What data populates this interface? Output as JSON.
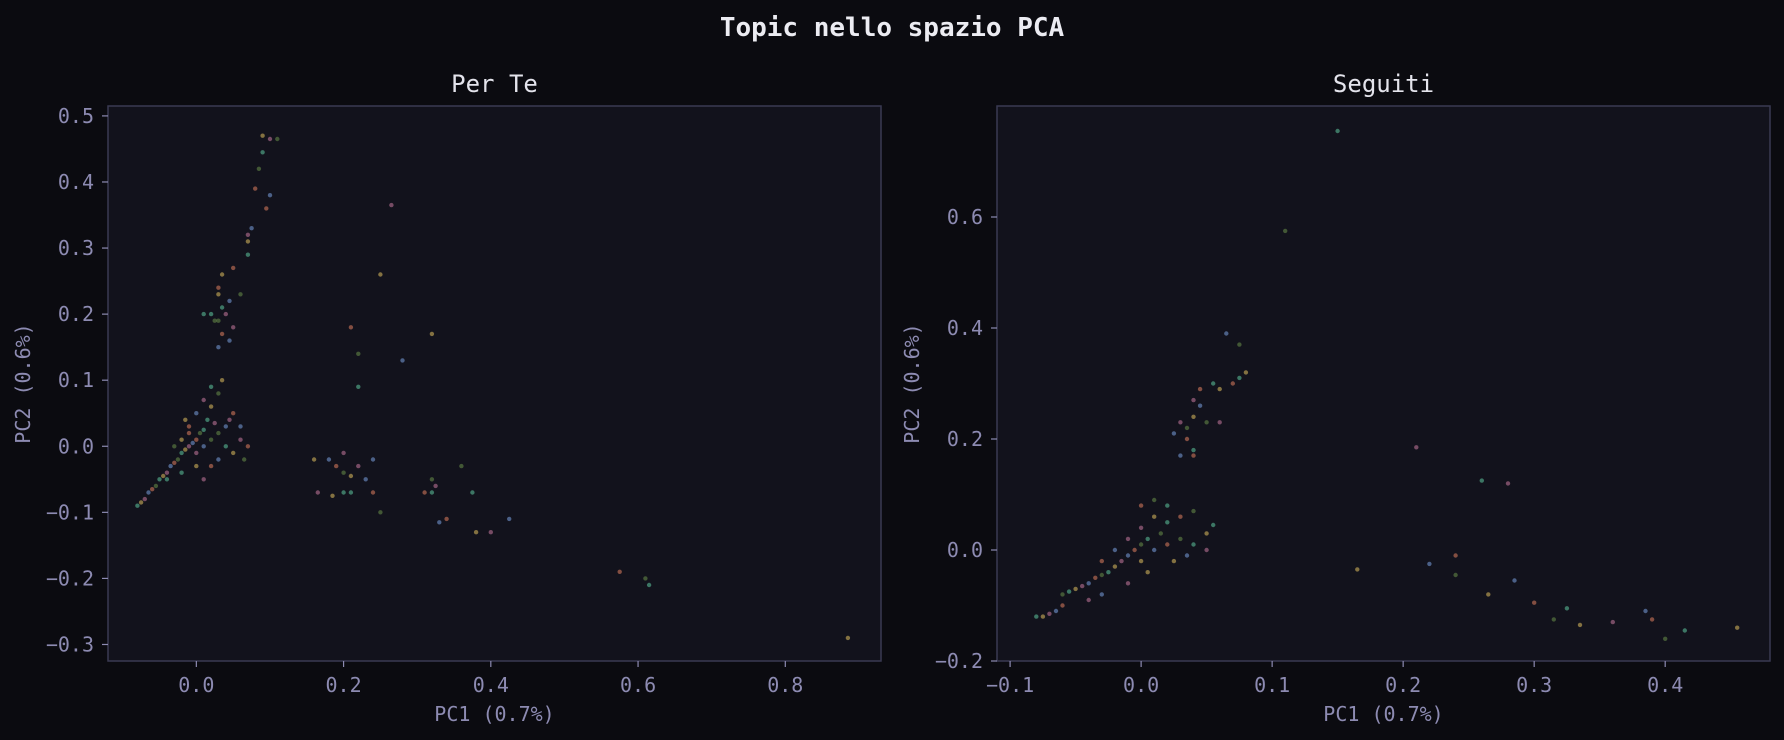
{
  "suptitle": "Topic nello spazio PCA",
  "colors": {
    "background": "#0b0b10",
    "axes_bg": "#12121c",
    "spine": "#3a3a52",
    "text": "#e4e4ec",
    "tick": "#8d8bb2"
  },
  "chart_data": [
    {
      "type": "scatter",
      "title": "Per Te",
      "xlabel": "PC1 (0.7%)",
      "ylabel": "PC2 (0.6%)",
      "xlim": [
        -0.12,
        0.93
      ],
      "ylim": [
        -0.325,
        0.515
      ],
      "xticks": [
        0.0,
        0.2,
        0.4,
        0.6,
        0.8
      ],
      "xtick_labels": [
        "0.0",
        "0.2",
        "0.4",
        "0.6",
        "0.8"
      ],
      "yticks": [
        0.5,
        0.4,
        0.3,
        0.2,
        0.1,
        0.0,
        -0.1,
        -0.2,
        -0.3
      ],
      "ytick_labels": [
        "0.5",
        "0.4",
        "0.3",
        "0.2",
        "0.1",
        "0.0",
        "−0.1",
        "−0.2",
        "−0.3"
      ],
      "grid": false,
      "point_colors": [
        "#5ec8a0",
        "#e0c060",
        "#c87aa0",
        "#7aa0e0",
        "#e08060",
        "#6a8f4a"
      ],
      "points": [
        [
          -0.08,
          -0.09
        ],
        [
          -0.075,
          -0.085
        ],
        [
          -0.07,
          -0.08
        ],
        [
          -0.065,
          -0.07
        ],
        [
          -0.06,
          -0.065
        ],
        [
          -0.055,
          -0.06
        ],
        [
          -0.05,
          -0.05
        ],
        [
          -0.045,
          -0.045
        ],
        [
          -0.04,
          -0.04
        ],
        [
          -0.035,
          -0.03
        ],
        [
          -0.03,
          -0.025
        ],
        [
          -0.025,
          -0.02
        ],
        [
          -0.02,
          -0.01
        ],
        [
          -0.015,
          -0.005
        ],
        [
          -0.01,
          0.0
        ],
        [
          -0.005,
          0.005
        ],
        [
          0.0,
          0.01
        ],
        [
          0.005,
          0.02
        ],
        [
          0.01,
          0.025
        ],
        [
          -0.02,
          0.01
        ],
        [
          0.0,
          -0.01
        ],
        [
          0.01,
          0.0
        ],
        [
          -0.01,
          0.02
        ],
        [
          0.02,
          0.01
        ],
        [
          0.015,
          0.04
        ],
        [
          0.02,
          0.06
        ],
        [
          0.01,
          0.07
        ],
        [
          0.0,
          0.05
        ],
        [
          -0.01,
          0.03
        ],
        [
          0.03,
          0.02
        ],
        [
          0.04,
          0.0
        ],
        [
          0.05,
          -0.01
        ],
        [
          0.06,
          0.01
        ],
        [
          0.03,
          -0.02
        ],
        [
          0.02,
          -0.03
        ],
        [
          -0.03,
          0.0
        ],
        [
          -0.02,
          -0.04
        ],
        [
          0.0,
          -0.03
        ],
        [
          0.01,
          -0.05
        ],
        [
          0.04,
          0.03
        ],
        [
          0.05,
          0.05
        ],
        [
          0.03,
          0.08
        ],
        [
          0.02,
          0.09
        ],
        [
          0.035,
          0.1
        ],
        [
          0.045,
          0.04
        ],
        [
          0.06,
          0.03
        ],
        [
          0.07,
          0.0
        ],
        [
          0.065,
          -0.02
        ],
        [
          -0.04,
          -0.05
        ],
        [
          -0.015,
          0.04
        ],
        [
          0.025,
          0.035
        ],
        [
          0.03,
          0.15
        ],
        [
          0.035,
          0.17
        ],
        [
          0.03,
          0.19
        ],
        [
          0.035,
          0.21
        ],
        [
          0.03,
          0.23
        ],
        [
          0.04,
          0.2
        ],
        [
          0.045,
          0.22
        ],
        [
          0.03,
          0.24
        ],
        [
          0.025,
          0.19
        ],
        [
          0.02,
          0.2
        ],
        [
          0.035,
          0.26
        ],
        [
          0.05,
          0.18
        ],
        [
          0.045,
          0.16
        ],
        [
          0.05,
          0.27
        ],
        [
          0.06,
          0.23
        ],
        [
          0.07,
          0.29
        ],
        [
          0.07,
          0.31
        ],
        [
          0.07,
          0.32
        ],
        [
          0.075,
          0.33
        ],
        [
          0.08,
          0.39
        ],
        [
          0.085,
          0.42
        ],
        [
          0.09,
          0.445
        ],
        [
          0.09,
          0.47
        ],
        [
          0.1,
          0.465
        ],
        [
          0.1,
          0.38
        ],
        [
          0.095,
          0.36
        ],
        [
          0.11,
          0.465
        ],
        [
          0.01,
          0.2
        ],
        [
          0.16,
          -0.02
        ],
        [
          0.165,
          -0.07
        ],
        [
          0.18,
          -0.02
        ],
        [
          0.19,
          -0.03
        ],
        [
          0.2,
          -0.04
        ],
        [
          0.2,
          -0.07
        ],
        [
          0.21,
          -0.045
        ],
        [
          0.22,
          -0.03
        ],
        [
          0.23,
          -0.05
        ],
        [
          0.24,
          -0.07
        ],
        [
          0.25,
          -0.1
        ],
        [
          0.21,
          -0.07
        ],
        [
          0.185,
          -0.075
        ],
        [
          0.2,
          -0.01
        ],
        [
          0.24,
          -0.02
        ],
        [
          0.21,
          0.18
        ],
        [
          0.22,
          0.14
        ],
        [
          0.22,
          0.09
        ],
        [
          0.25,
          0.26
        ],
        [
          0.265,
          0.365
        ],
        [
          0.28,
          0.13
        ],
        [
          0.31,
          -0.07
        ],
        [
          0.32,
          -0.05
        ],
        [
          0.32,
          -0.07
        ],
        [
          0.32,
          0.17
        ],
        [
          0.325,
          -0.06
        ],
        [
          0.33,
          -0.115
        ],
        [
          0.34,
          -0.11
        ],
        [
          0.36,
          -0.03
        ],
        [
          0.375,
          -0.07
        ],
        [
          0.38,
          -0.13
        ],
        [
          0.4,
          -0.13
        ],
        [
          0.425,
          -0.11
        ],
        [
          0.575,
          -0.19
        ],
        [
          0.61,
          -0.2
        ],
        [
          0.615,
          -0.21
        ],
        [
          0.885,
          -0.29
        ]
      ]
    },
    {
      "type": "scatter",
      "title": "Seguiti",
      "xlabel": "PC1 (0.7%)",
      "ylabel": "PC2 (0.6%)",
      "xlim": [
        -0.11,
        0.48
      ],
      "ylim": [
        -0.2,
        0.8
      ],
      "xticks": [
        -0.1,
        0.0,
        0.1,
        0.2,
        0.3,
        0.4
      ],
      "xtick_labels": [
        "−0.1",
        "0.0",
        "0.1",
        "0.2",
        "0.3",
        "0.4"
      ],
      "yticks": [
        0.6,
        0.4,
        0.2,
        0.0,
        -0.2
      ],
      "ytick_labels": [
        "0.6",
        "0.4",
        "0.2",
        "0.0",
        "−0.2"
      ],
      "grid": false,
      "point_colors": [
        "#5ec8a0",
        "#e0c060",
        "#c87aa0",
        "#7aa0e0",
        "#e08060",
        "#6a8f4a"
      ],
      "points": [
        [
          -0.08,
          -0.12
        ],
        [
          -0.075,
          -0.12
        ],
        [
          -0.07,
          -0.115
        ],
        [
          -0.065,
          -0.11
        ],
        [
          -0.06,
          -0.1
        ],
        [
          -0.06,
          -0.08
        ],
        [
          -0.055,
          -0.075
        ],
        [
          -0.05,
          -0.07
        ],
        [
          -0.045,
          -0.065
        ],
        [
          -0.04,
          -0.06
        ],
        [
          -0.035,
          -0.05
        ],
        [
          -0.03,
          -0.045
        ],
        [
          -0.025,
          -0.04
        ],
        [
          -0.02,
          -0.03
        ],
        [
          -0.015,
          -0.02
        ],
        [
          -0.01,
          -0.01
        ],
        [
          -0.005,
          0.0
        ],
        [
          0.0,
          0.01
        ],
        [
          0.005,
          0.02
        ],
        [
          0.0,
          -0.02
        ],
        [
          -0.01,
          0.02
        ],
        [
          0.01,
          0.0
        ],
        [
          0.02,
          0.01
        ],
        [
          0.015,
          0.03
        ],
        [
          0.02,
          0.05
        ],
        [
          0.01,
          0.06
        ],
        [
          0.0,
          0.04
        ],
        [
          -0.02,
          0.0
        ],
        [
          -0.03,
          -0.02
        ],
        [
          0.03,
          0.02
        ],
        [
          0.04,
          0.01
        ],
        [
          0.05,
          0.03
        ],
        [
          0.05,
          0.0
        ],
        [
          0.035,
          -0.01
        ],
        [
          0.0,
          0.08
        ],
        [
          0.01,
          0.09
        ],
        [
          0.02,
          0.08
        ],
        [
          0.005,
          -0.04
        ],
        [
          -0.01,
          -0.06
        ],
        [
          -0.03,
          -0.08
        ],
        [
          0.03,
          0.06
        ],
        [
          0.04,
          0.07
        ],
        [
          0.055,
          0.045
        ],
        [
          0.025,
          -0.02
        ],
        [
          -0.04,
          -0.09
        ],
        [
          0.03,
          0.17
        ],
        [
          0.035,
          0.2
        ],
        [
          0.035,
          0.22
        ],
        [
          0.04,
          0.18
        ],
        [
          0.04,
          0.24
        ],
        [
          0.04,
          0.27
        ],
        [
          0.045,
          0.26
        ],
        [
          0.045,
          0.29
        ],
        [
          0.05,
          0.23
        ],
        [
          0.055,
          0.3
        ],
        [
          0.06,
          0.29
        ],
        [
          0.06,
          0.23
        ],
        [
          0.065,
          0.39
        ],
        [
          0.07,
          0.3
        ],
        [
          0.075,
          0.37
        ],
        [
          0.075,
          0.31
        ],
        [
          0.08,
          0.32
        ],
        [
          0.03,
          0.23
        ],
        [
          0.025,
          0.21
        ],
        [
          0.04,
          0.17
        ],
        [
          0.11,
          0.575
        ],
        [
          0.15,
          0.755
        ],
        [
          0.165,
          -0.035
        ],
        [
          0.21,
          0.185
        ],
        [
          0.22,
          -0.025
        ],
        [
          0.24,
          -0.01
        ],
        [
          0.24,
          -0.045
        ],
        [
          0.26,
          0.125
        ],
        [
          0.265,
          -0.08
        ],
        [
          0.28,
          0.12
        ],
        [
          0.285,
          -0.055
        ],
        [
          0.3,
          -0.095
        ],
        [
          0.315,
          -0.125
        ],
        [
          0.325,
          -0.105
        ],
        [
          0.335,
          -0.135
        ],
        [
          0.36,
          -0.13
        ],
        [
          0.385,
          -0.11
        ],
        [
          0.39,
          -0.125
        ],
        [
          0.4,
          -0.16
        ],
        [
          0.415,
          -0.145
        ],
        [
          0.455,
          -0.14
        ]
      ]
    }
  ]
}
